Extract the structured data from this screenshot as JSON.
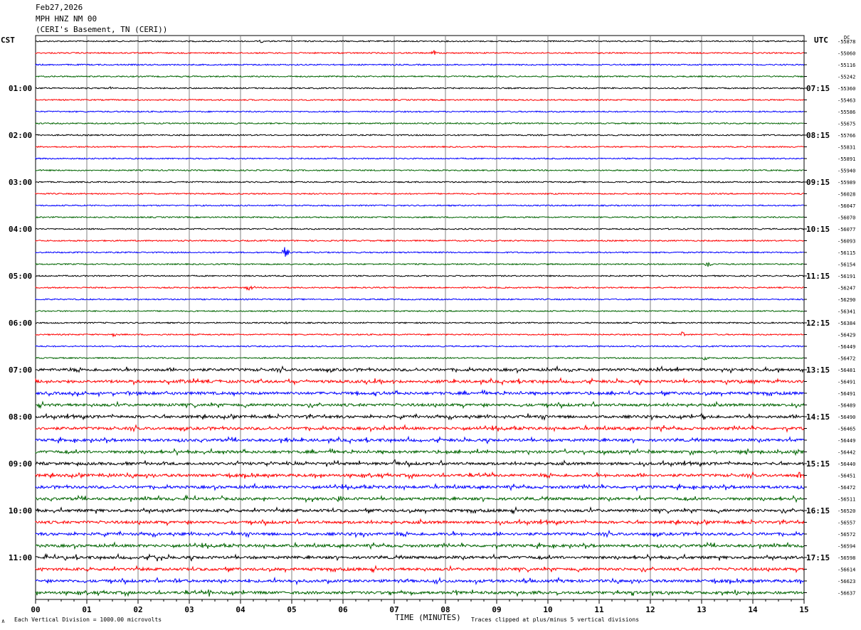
{
  "header": {
    "date": "Feb27,2026",
    "station": "MPH HNZ NM 00",
    "location": "(CERI's Basement, TN (CERI))"
  },
  "left_tz": "CST",
  "right_tz": "UTC",
  "dc_label": "DC",
  "footer": {
    "left_mark": "∧",
    "left": "Each Vertical Division = 1000.00 microvolts",
    "xlabel": "TIME (MINUTES)",
    "right": "Traces clipped at plus/minus 5 vertical divisions"
  },
  "chart_data": {
    "type": "line",
    "title": "MPH HNZ NM 00",
    "xlabel": "TIME (MINUTES)",
    "xlim": [
      0,
      15
    ],
    "x_ticks": [
      "00",
      "01",
      "02",
      "03",
      "04",
      "05",
      "06",
      "07",
      "08",
      "09",
      "10",
      "11",
      "12",
      "13",
      "14",
      "15"
    ],
    "trace_colors": [
      "#000000",
      "#ff0000",
      "#0000ff",
      "#006400"
    ],
    "left_hour_labels": [
      "01:00",
      "02:00",
      "03:00",
      "04:00",
      "05:00",
      "06:00",
      "07:00",
      "08:00",
      "09:00",
      "10:00",
      "11:00"
    ],
    "right_hour_labels": [
      "07:15",
      "08:15",
      "09:15",
      "10:15",
      "11:15",
      "12:15",
      "13:15",
      "14:15",
      "15:15",
      "16:15",
      "17:15"
    ],
    "dc_offsets": [
      -55878,
      -55060,
      -55116,
      -55242,
      -55360,
      -55463,
      -55586,
      -55675,
      -55766,
      -55831,
      -55891,
      -55940,
      -55989,
      -56028,
      -56047,
      -56070,
      -56077,
      -56093,
      -56115,
      -56154,
      -56191,
      -56247,
      -56290,
      -56341,
      -56384,
      -56429,
      -56449,
      -56472,
      -56481,
      -56491,
      -56491,
      -56489,
      -56490,
      -56465,
      -56449,
      -56442,
      -56440,
      -56451,
      -56472,
      -56511,
      -56520,
      -56557,
      -56572,
      -56594,
      -56598,
      -56614,
      -56623,
      -56637
    ],
    "noise_levels": [
      1,
      1,
      1,
      1,
      1,
      1,
      1,
      1,
      1,
      1,
      1,
      1,
      1,
      1,
      1,
      1,
      1,
      1,
      1,
      1,
      1,
      1,
      1,
      1,
      1,
      1,
      1,
      1,
      2,
      2,
      2,
      2,
      2,
      2,
      2,
      2,
      2,
      2,
      2,
      2,
      2,
      2,
      2,
      2,
      2,
      2,
      2,
      2
    ],
    "events": [
      {
        "trace": 0,
        "minute": 4.4,
        "amp": 2
      },
      {
        "trace": 1,
        "minute": 7.75,
        "amp": 5
      },
      {
        "trace": 4,
        "minute": 1.45,
        "amp": 3
      },
      {
        "trace": 18,
        "minute": 4.85,
        "amp": 10
      },
      {
        "trace": 19,
        "minute": 13.1,
        "amp": 7
      },
      {
        "trace": 21,
        "minute": 4.15,
        "amp": 8
      },
      {
        "trace": 24,
        "minute": 4.85,
        "amp": 4
      },
      {
        "trace": 25,
        "minute": 1.5,
        "amp": 5
      },
      {
        "trace": 25,
        "minute": 12.6,
        "amp": 5
      },
      {
        "trace": 27,
        "minute": 13.05,
        "amp": 6
      },
      {
        "trace": 28,
        "minute": 10.4,
        "amp": 4
      },
      {
        "trace": 29,
        "minute": 13.5,
        "amp": 4
      },
      {
        "trace": 30,
        "minute": 11.3,
        "amp": 5
      },
      {
        "trace": 32,
        "minute": 13.0,
        "amp": 5
      },
      {
        "trace": 33,
        "minute": 6.8,
        "amp": 4
      },
      {
        "trace": 34,
        "minute": 4.9,
        "amp": 4
      },
      {
        "trace": 35,
        "minute": 3.65,
        "amp": 4
      },
      {
        "trace": 36,
        "minute": 7.0,
        "amp": 8
      },
      {
        "trace": 37,
        "minute": 1.4,
        "amp": 4
      },
      {
        "trace": 37,
        "minute": 14.9,
        "amp": 6
      },
      {
        "trace": 39,
        "minute": 5.9,
        "amp": 6
      },
      {
        "trace": 40,
        "minute": 2.8,
        "amp": 5
      },
      {
        "trace": 42,
        "minute": 6.4,
        "amp": 5
      },
      {
        "trace": 44,
        "minute": 2.3,
        "amp": 5
      },
      {
        "trace": 44,
        "minute": 0.6,
        "amp": 4
      },
      {
        "trace": 46,
        "minute": 2.7,
        "amp": 5
      },
      {
        "trace": 47,
        "minute": 3.4,
        "amp": 5
      }
    ]
  }
}
